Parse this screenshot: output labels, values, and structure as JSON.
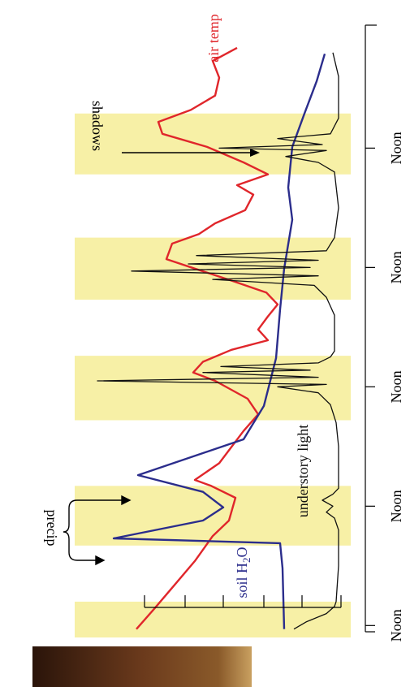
{
  "chart_data": {
    "type": "line",
    "xlim": [
      -0.1,
      5.03
    ],
    "ylim": [
      0,
      340
    ],
    "xticks": [
      {
        "value": 0,
        "label": "Noon"
      },
      {
        "value": 1,
        "label": "Noon"
      },
      {
        "value": 2,
        "label": "Noon"
      },
      {
        "value": 3,
        "label": "Noon"
      },
      {
        "value": 4,
        "label": "Noon"
      }
    ],
    "shaded_spans": [
      [
        -0.1,
        0.2
      ],
      [
        0.67,
        1.17
      ],
      [
        1.72,
        2.26
      ],
      [
        2.73,
        3.25
      ],
      [
        3.78,
        4.29
      ]
    ],
    "shade_color": "#f7f0a6",
    "annotations": {
      "precip": "precip",
      "shadows": "shadows"
    },
    "series": [
      {
        "name": "air temp",
        "color": "#e0262b",
        "x": [
          -0.03,
          0.14,
          0.34,
          0.54,
          0.75,
          0.88,
          1.07,
          1.17,
          1.22,
          1.36,
          1.63,
          1.77,
          1.9,
          2.05,
          2.12,
          2.21,
          2.31,
          2.39,
          2.48,
          2.59,
          2.69,
          2.79,
          2.89,
          2.99,
          3.07,
          3.2,
          3.28,
          3.37,
          3.48,
          3.61,
          3.69,
          3.78,
          3.88,
          4.01,
          4.12,
          4.22,
          4.32,
          4.44,
          4.59,
          4.73,
          4.84
        ],
        "values": [
          264,
          242,
          217,
          192,
          170,
          150,
          142,
          172,
          192,
          162,
          132,
          114,
          127,
          167,
          194,
          182,
          147,
          102,
          114,
          102,
          90,
          104,
          147,
          192,
          227,
          220,
          187,
          167,
          130,
          120,
          140,
          102,
          132,
          177,
          232,
          237,
          197,
          167,
          162,
          170,
          140
        ]
      },
      {
        "name": "soil H2O",
        "color": "#2b2d8c",
        "x": [
          -0.03,
          0.48,
          0.69,
          0.73,
          0.88,
          0.99,
          1.12,
          1.26,
          1.56,
          1.84,
          2.24,
          2.65,
          2.99,
          3.4,
          3.67,
          4.01,
          4.29,
          4.56,
          4.79
        ],
        "values": [
          82,
          84,
          87,
          292,
          182,
          157,
          182,
          262,
          132,
          107,
          92,
          87,
          82,
          72,
          77,
          72,
          57,
          42,
          32
        ]
      },
      {
        "name": "understory light",
        "color": "#111111",
        "x": [
          -0.03,
          0.03,
          0.1,
          0.16,
          0.2,
          0.5,
          0.8,
          0.9,
          0.95,
          1.0,
          1.05,
          1.1,
          1.15,
          1.5,
          1.7,
          1.85,
          1.95,
          2.0,
          2.02,
          2.05,
          2.08,
          2.12,
          2.14,
          2.17,
          2.2,
          2.25,
          2.3,
          2.6,
          2.75,
          2.85,
          2.9,
          2.93,
          2.97,
          3.0,
          3.03,
          3.06,
          3.1,
          3.14,
          3.25,
          3.5,
          3.8,
          3.88,
          3.93,
          3.98,
          4.0,
          4.03,
          4.08,
          4.12,
          4.25,
          4.6,
          4.8
        ],
        "values": [
          70,
          55,
          30,
          20,
          18,
          15,
          15,
          20,
          30,
          22,
          35,
          22,
          15,
          15,
          18,
          25,
          40,
          90,
          30,
          312,
          40,
          182,
          50,
          160,
          40,
          25,
          20,
          20,
          30,
          45,
          170,
          40,
          270,
          50,
          200,
          40,
          190,
          30,
          20,
          15,
          20,
          40,
          80,
          30,
          162,
          35,
          90,
          25,
          15,
          15,
          22
        ]
      }
    ]
  }
}
